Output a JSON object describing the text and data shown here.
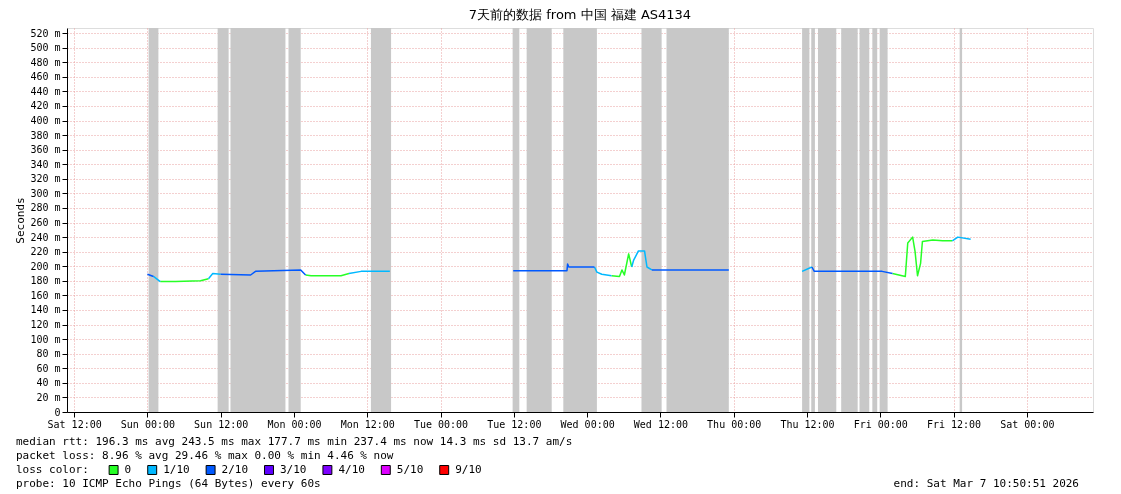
{
  "chart_data": {
    "type": "line",
    "title": "7天前的数据 from 中国 福建 AS4134",
    "ylabel": "Seconds",
    "legend_title": "loss color:",
    "legend": "bottom left",
    "grid": true,
    "xlim": [
      "2026-02-28T10:50",
      "2026-03-07T10:50"
    ],
    "ylim": [
      0,
      527
    ],
    "xticks": [
      {
        "value": "2026-02-28T12:00",
        "label": "Sat 12:00"
      },
      {
        "value": "2026-03-01T00:00",
        "label": "Sun 00:00"
      },
      {
        "value": "2026-03-01T12:00",
        "label": "Sun 12:00"
      },
      {
        "value": "2026-03-02T00:00",
        "label": "Mon 00:00"
      },
      {
        "value": "2026-03-02T12:00",
        "label": "Mon 12:00"
      },
      {
        "value": "2026-03-03T00:00",
        "label": "Tue 00:00"
      },
      {
        "value": "2026-03-03T12:00",
        "label": "Tue 12:00"
      },
      {
        "value": "2026-03-04T00:00",
        "label": "Wed 00:00"
      },
      {
        "value": "2026-03-04T12:00",
        "label": "Wed 12:00"
      },
      {
        "value": "2026-03-05T00:00",
        "label": "Thu 00:00"
      },
      {
        "value": "2026-03-05T12:00",
        "label": "Thu 12:00"
      },
      {
        "value": "2026-03-06T00:00",
        "label": "Fri 00:00"
      },
      {
        "value": "2026-03-06T12:00",
        "label": "Fri 12:00"
      },
      {
        "value": "2026-03-07T00:00",
        "label": "Sat 00:00"
      }
    ],
    "yticks": [
      0,
      {
        "value": 20,
        "label": "20 m"
      },
      {
        "value": 40,
        "label": "40 m"
      },
      {
        "value": 60,
        "label": "60 m"
      },
      {
        "value": 80,
        "label": "80 m"
      },
      {
        "value": 100,
        "label": "100 m"
      },
      {
        "value": 120,
        "label": "120 m"
      },
      {
        "value": 140,
        "label": "140 m"
      },
      {
        "value": 160,
        "label": "160 m"
      },
      {
        "value": 180,
        "label": "180 m"
      },
      {
        "value": 200,
        "label": "200 m"
      },
      {
        "value": 220,
        "label": "220 m"
      },
      {
        "value": 240,
        "label": "240 m"
      },
      {
        "value": 260,
        "label": "260 m"
      },
      {
        "value": 280,
        "label": "280 m"
      },
      {
        "value": 300,
        "label": "300 m"
      },
      {
        "value": 320,
        "label": "320 m"
      },
      {
        "value": 340,
        "label": "340 m"
      },
      {
        "value": 360,
        "label": "360 m"
      },
      {
        "value": 380,
        "label": "380 m"
      },
      {
        "value": 400,
        "label": "400 m"
      },
      {
        "value": 420,
        "label": "420 m"
      },
      {
        "value": 440,
        "label": "440 m"
      },
      {
        "value": 460,
        "label": "460 m"
      },
      {
        "value": 480,
        "label": "480 m"
      },
      {
        "value": 500,
        "label": "500 m"
      },
      {
        "value": 520,
        "label": "520 m"
      }
    ],
    "series": [
      {
        "name": "0",
        "color": "#26ff26",
        "x": [
          "2026-03-01T02:06",
          "2026-03-01T04:36",
          "2026-03-01T08:42",
          "2026-03-01T10:00",
          "2026-03-01T18:00",
          "2026-03-02T01:54",
          "2026-03-02T02:48",
          "2026-03-02T07:42",
          "2026-03-02T09:00",
          "2026-03-03T00:00",
          "2026-03-04T04:00",
          "2026-03-04T05:18",
          "2026-03-04T05:42",
          "2026-03-04T06:06",
          "2026-03-04T06:48",
          "2026-03-04T07:18",
          "2026-03-05T02:00",
          "2026-03-06T02:00",
          "2026-03-06T04:06",
          "2026-03-06T04:30",
          "2026-03-06T05:18",
          "2026-03-06T05:42",
          "2026-03-06T06:06",
          "2026-03-06T06:36",
          "2026-03-06T06:54",
          "2026-03-06T08:36",
          "2026-03-06T10:12",
          "2026-03-06T11:48"
        ],
        "values": [
          179,
          179,
          180,
          183,
          null,
          188,
          187,
          187,
          190,
          null,
          187,
          186,
          195,
          188,
          217,
          199,
          null,
          190,
          186,
          232,
          240,
          220,
          187,
          204,
          234,
          236,
          235,
          235
        ]
      },
      {
        "name": "1/10",
        "color": "#00b8ff",
        "x": [
          "2026-03-01T01:00",
          "2026-03-01T02:06",
          "2026-03-01T06:00",
          "2026-03-01T10:00",
          "2026-03-01T10:42",
          "2026-03-01T12:00",
          "2026-03-02T04:00",
          "2026-03-02T09:00",
          "2026-03-02T11:00",
          "2026-03-02T15:42",
          "2026-03-03T00:00",
          "2026-03-04T01:12",
          "2026-03-04T01:36",
          "2026-03-04T02:24",
          "2026-03-04T04:00",
          "2026-03-04T05:00",
          "2026-03-04T07:18",
          "2026-03-04T07:36",
          "2026-03-04T08:24",
          "2026-03-04T09:24",
          "2026-03-04T09:48",
          "2026-03-04T10:36",
          "2026-03-05T02:00",
          "2026-03-05T11:12",
          "2026-03-05T12:48",
          "2026-03-05T22:00",
          "2026-03-06T11:48",
          "2026-03-06T12:42",
          "2026-03-06T14:48"
        ],
        "values": [
          186,
          179,
          null,
          183,
          190,
          189,
          null,
          190,
          193,
          193,
          null,
          199,
          192,
          189,
          187,
          null,
          199,
          208,
          221,
          221,
          199,
          195,
          null,
          193,
          199,
          null,
          235,
          240,
          237
        ]
      },
      {
        "name": "2/10",
        "color": "#0059ff",
        "x": [
          "2026-03-01T00:00",
          "2026-03-01T01:00",
          "2026-03-01T06:00",
          "2026-03-01T12:00",
          "2026-03-01T16:54",
          "2026-03-01T17:42",
          "2026-03-02T01:06",
          "2026-03-02T01:54",
          "2026-03-03T00:00",
          "2026-03-03T11:54",
          "2026-03-03T20:42",
          "2026-03-03T20:48",
          "2026-03-03T21:00",
          "2026-03-04T01:12",
          "2026-03-04T06:00",
          "2026-03-04T10:36",
          "2026-03-04T23:12",
          "2026-03-05T02:00",
          "2026-03-05T12:48",
          "2026-03-05T13:12",
          "2026-03-06T00:18",
          "2026-03-06T02:00"
        ],
        "values": [
          189,
          186,
          null,
          189,
          188,
          193,
          195,
          188,
          null,
          194,
          194,
          203,
          199,
          199,
          null,
          195,
          195,
          null,
          199,
          193,
          193,
          190
        ]
      },
      {
        "name": "3/10",
        "color": "#5e00ff"
      },
      {
        "name": "4/10",
        "color": "#7e00ff"
      },
      {
        "name": "5/10",
        "color": "#dd00ff"
      },
      {
        "name": "9/10",
        "color": "#ff0000"
      }
    ],
    "bands": [
      {
        "axis": "x",
        "from": "2026-03-01T00:12",
        "to": "2026-03-01T01:48",
        "color": "#c8c8c8"
      },
      {
        "axis": "x",
        "from": "2026-03-01T11:30",
        "to": "2026-03-01T13:18",
        "color": "#c8c8c8"
      },
      {
        "axis": "x",
        "from": "2026-03-01T13:36",
        "to": "2026-03-01T22:36",
        "color": "#c8c8c8"
      },
      {
        "axis": "x",
        "from": "2026-03-01T23:06",
        "to": "2026-03-02T01:06",
        "color": "#c8c8c8"
      },
      {
        "axis": "x",
        "from": "2026-03-02T12:36",
        "to": "2026-03-02T15:54",
        "color": "#c8c8c8"
      },
      {
        "axis": "x",
        "from": "2026-03-03T11:48",
        "to": "2026-03-03T12:54",
        "color": "#c8c8c8"
      },
      {
        "axis": "x",
        "from": "2026-03-03T14:06",
        "to": "2026-03-03T18:12",
        "color": "#c8c8c8"
      },
      {
        "axis": "x",
        "from": "2026-03-03T20:06",
        "to": "2026-03-04T01:36",
        "color": "#c8c8c8"
      },
      {
        "axis": "x",
        "from": "2026-03-04T08:54",
        "to": "2026-03-04T12:12",
        "color": "#c8c8c8"
      },
      {
        "axis": "x",
        "from": "2026-03-04T13:00",
        "to": "2026-03-04T23:12",
        "color": "#c8c8c8"
      },
      {
        "axis": "x",
        "from": "2026-03-05T11:12",
        "to": "2026-03-05T12:24",
        "color": "#c8c8c8"
      },
      {
        "axis": "x",
        "from": "2026-03-05T12:42",
        "to": "2026-03-05T13:18",
        "color": "#c8c8c8"
      },
      {
        "axis": "x",
        "from": "2026-03-05T13:48",
        "to": "2026-03-05T16:48",
        "color": "#c8c8c8"
      },
      {
        "axis": "x",
        "from": "2026-03-05T17:36",
        "to": "2026-03-05T20:18",
        "color": "#c8c8c8"
      },
      {
        "axis": "x",
        "from": "2026-03-05T20:36",
        "to": "2026-03-05T22:12",
        "color": "#c8c8c8"
      },
      {
        "axis": "x",
        "from": "2026-03-05T22:42",
        "to": "2026-03-05T23:30",
        "color": "#c8c8c8"
      },
      {
        "axis": "x",
        "from": "2026-03-05T23:54",
        "to": "2026-03-06T01:12",
        "color": "#c8c8c8"
      },
      {
        "axis": "x",
        "from": "2026-03-06T13:00",
        "to": "2026-03-06T13:24",
        "color": "#c8c8c8"
      }
    ],
    "annotations": [
      "median rtt:  196.3 ms avg  243.5 ms max  177.7 ms min  237.4 ms now  14.3 ms sd  13.7   am/s",
      "packet loss: 8.96 % avg  29.46 % max  0.00 % min  4.46 % now",
      "probe:       10 ICMP Echo Pings (64 Bytes) every 60s",
      "end: Sat Mar  7 10:50:51 2026"
    ]
  }
}
